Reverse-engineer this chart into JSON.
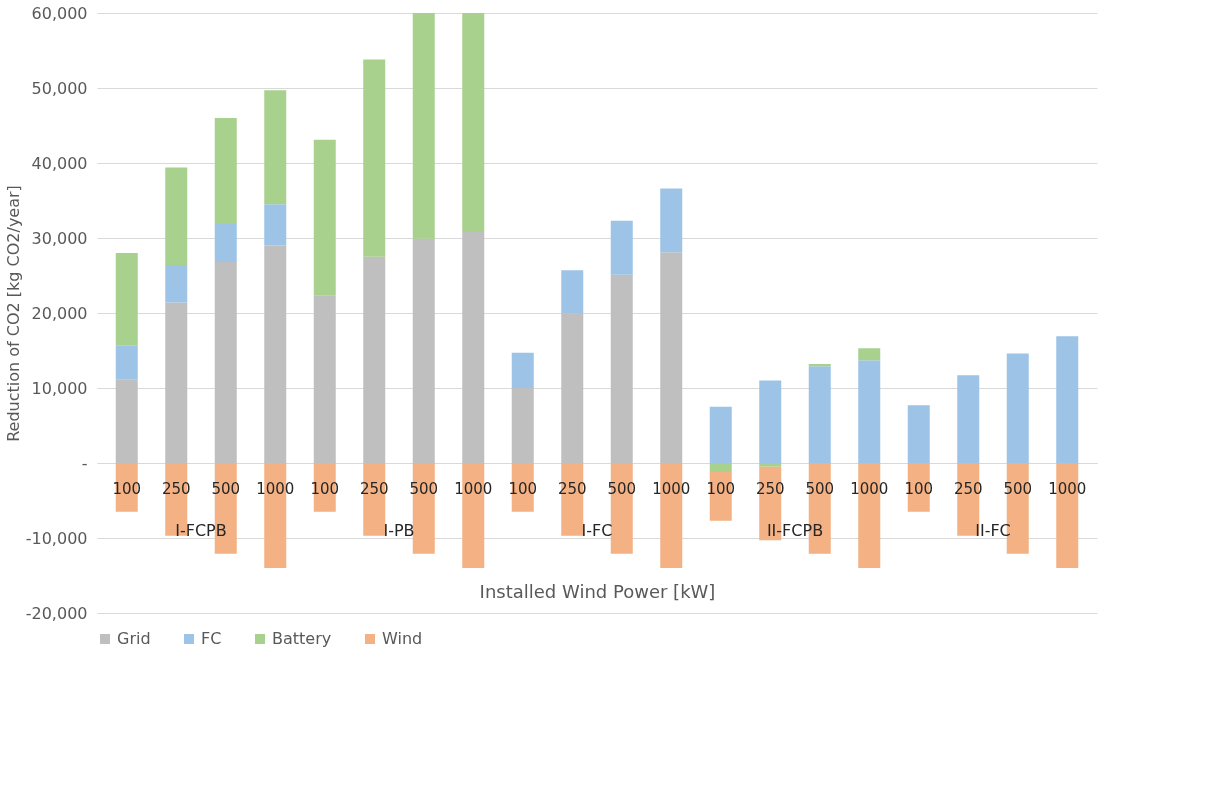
{
  "chart_data": {
    "type": "bar",
    "stacked": true,
    "xlabel": "Installed Wind Power [kW]",
    "ylabel": "Reduction of CO2 [kg CO2/year]",
    "categories": [
      "100",
      "250",
      "500",
      "1000",
      "100",
      "250",
      "500",
      "1000",
      "100",
      "250",
      "500",
      "1000",
      "100",
      "250",
      "500",
      "1000",
      "100",
      "250",
      "500",
      "1000"
    ],
    "annotations": [
      "I-FCPB",
      "I-PB",
      "I-FC",
      "II-FCPB",
      "II-FC"
    ],
    "series": [
      {
        "name": "Grid",
        "color": "#bfbfbf",
        "values": [
          11100,
          21400,
          26800,
          29000,
          22300,
          27500,
          29900,
          30800,
          10000,
          19900,
          25100,
          28100,
          0,
          0,
          0,
          0,
          0,
          0,
          0,
          0
        ]
      },
      {
        "name": "FC",
        "color": "#9dc3e6",
        "values": [
          4600,
          5000,
          5200,
          5500,
          0,
          0,
          0,
          0,
          4700,
          5800,
          7200,
          8500,
          7500,
          11000,
          12900,
          13700,
          7700,
          11700,
          14600,
          16900
        ]
      },
      {
        "name": "Battery",
        "color": "#a9d18e",
        "values": [
          12300,
          13000,
          14000,
          15200,
          20800,
          26300,
          30100,
          29200,
          0,
          0,
          0,
          0,
          -1200,
          -500,
          300,
          1600,
          0,
          0,
          0,
          0
        ]
      },
      {
        "name": "Wind",
        "color": "#f4b183",
        "values": [
          -6500,
          -9700,
          -12100,
          -14000,
          -6500,
          -9700,
          -12100,
          -14000,
          -6500,
          -9700,
          -12100,
          -14000,
          -6500,
          -9800,
          -12100,
          -14000,
          -6500,
          -9700,
          -12100,
          -14000
        ]
      }
    ],
    "ylim": [
      -20000,
      60000
    ],
    "yticks": [
      {
        "value": -20000,
        "label": "-20,000"
      },
      {
        "value": -10000,
        "label": "-10,000"
      },
      {
        "value": 0,
        "label": "-"
      },
      {
        "value": 10000,
        "label": "10,000"
      },
      {
        "value": 20000,
        "label": "20,000"
      },
      {
        "value": 30000,
        "label": "30,000"
      },
      {
        "value": 40000,
        "label": "40,000"
      },
      {
        "value": 50000,
        "label": "50,000"
      },
      {
        "value": 60000,
        "label": "60,000"
      }
    ],
    "grid": "y",
    "legend": "bottom"
  }
}
